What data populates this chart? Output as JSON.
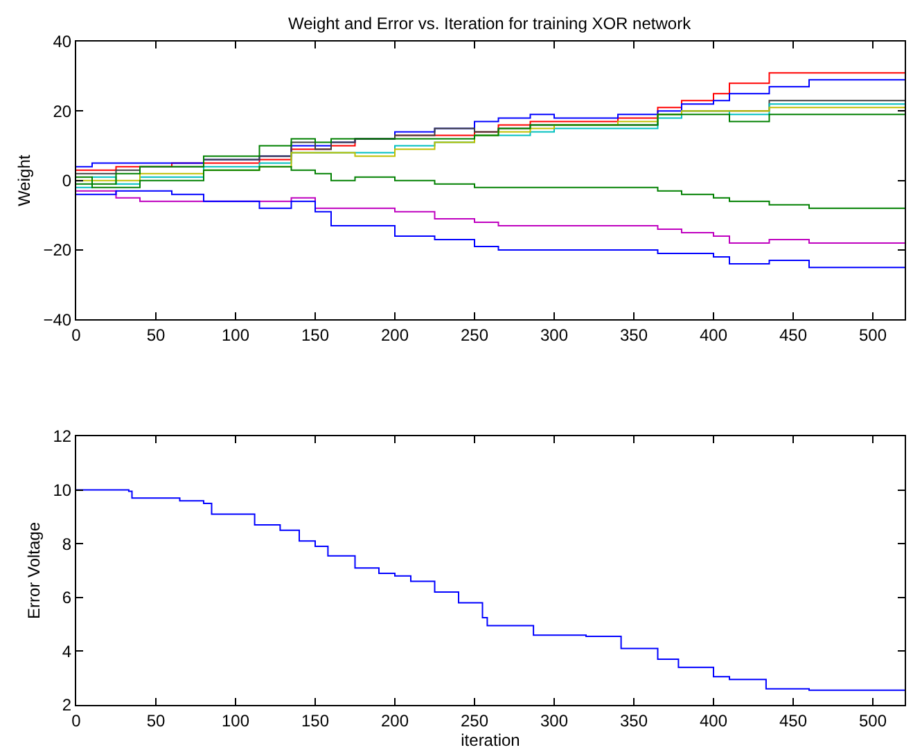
{
  "chart_data": [
    {
      "type": "step",
      "title": "Weight and Error vs. Iteration for training XOR network",
      "ylabel": "Weight",
      "x": [
        0,
        10,
        25,
        40,
        60,
        80,
        100,
        115,
        135,
        150,
        160,
        175,
        200,
        225,
        250,
        265,
        285,
        300,
        340,
        365,
        380,
        400,
        410,
        435,
        460,
        520
      ],
      "series": [
        {
          "color": "#ff0000",
          "values": [
            3,
            3,
            4,
            4,
            5,
            5,
            5,
            6,
            9,
            9,
            10,
            12,
            13,
            13,
            14,
            16,
            17,
            17,
            18,
            21,
            23,
            25,
            28,
            31,
            31,
            31
          ]
        },
        {
          "color": "#0000ff",
          "values": [
            4,
            5,
            5,
            5,
            5,
            6,
            6,
            7,
            10,
            10,
            11,
            12,
            14,
            15,
            17,
            18,
            19,
            18,
            19,
            20,
            22,
            23,
            25,
            27,
            29,
            29
          ]
        },
        {
          "color": "#404040",
          "values": [
            2,
            2,
            3,
            4,
            4,
            6,
            6,
            7,
            11,
            9,
            11,
            12,
            13,
            15,
            14,
            15,
            16,
            16,
            16,
            19,
            20,
            20,
            20,
            23,
            23,
            23
          ]
        },
        {
          "color": "#00bfbf",
          "values": [
            -2,
            1,
            -1,
            1,
            1,
            4,
            4,
            5,
            8,
            8,
            8,
            8,
            10,
            11,
            13,
            13,
            14,
            15,
            15,
            18,
            20,
            20,
            19,
            22,
            22,
            22
          ]
        },
        {
          "color": "#bfbf00",
          "values": [
            0,
            0,
            0,
            2,
            2,
            3,
            3,
            4,
            8,
            8,
            8,
            7,
            9,
            11,
            13,
            14,
            15,
            16,
            17,
            19,
            20,
            20,
            20,
            21,
            21,
            21
          ]
        },
        {
          "color": "#008000",
          "values": [
            1,
            -1,
            2,
            4,
            4,
            7,
            7,
            10,
            12,
            11,
            12,
            12,
            12,
            12,
            13,
            15,
            16,
            16,
            16,
            19,
            19,
            19,
            17,
            19,
            19,
            19
          ]
        },
        {
          "color": "#008000",
          "values": [
            -1,
            -2,
            -2,
            0,
            0,
            3,
            3,
            4,
            3,
            2,
            0,
            1,
            0,
            -1,
            -2,
            -2,
            -2,
            -2,
            -2,
            -3,
            -4,
            -5,
            -6,
            -7,
            -8,
            -8
          ]
        },
        {
          "color": "#bf00bf",
          "values": [
            -3,
            -3,
            -5,
            -6,
            -6,
            -6,
            -6,
            -6,
            -5,
            -8,
            -8,
            -8,
            -9,
            -11,
            -12,
            -13,
            -13,
            -13,
            -13,
            -14,
            -15,
            -16,
            -18,
            -17,
            -18,
            -18
          ]
        },
        {
          "color": "#0000ff",
          "values": [
            -4,
            -4,
            -3,
            -3,
            -4,
            -6,
            -6,
            -8,
            -6,
            -9,
            -13,
            -13,
            -16,
            -17,
            -19,
            -20,
            -20,
            -20,
            -20,
            -21,
            -21,
            -22,
            -24,
            -23,
            -25,
            -25
          ]
        }
      ],
      "xlim": [
        0,
        520
      ],
      "xticks": [
        0,
        50,
        100,
        150,
        200,
        250,
        300,
        350,
        400,
        450,
        500
      ],
      "ylim": [
        -40,
        40
      ],
      "yticks": [
        -40,
        -20,
        0,
        20,
        40
      ],
      "marker": "none",
      "line_style": "solid"
    },
    {
      "type": "step",
      "xlabel": "iteration",
      "ylabel": "Error Voltage",
      "x": [
        0,
        33,
        35,
        65,
        80,
        85,
        112,
        128,
        140,
        150,
        158,
        175,
        190,
        200,
        210,
        225,
        240,
        255,
        258,
        287,
        320,
        342,
        365,
        378,
        400,
        410,
        433,
        460,
        520
      ],
      "series": [
        {
          "color": "#0000ff",
          "values": [
            10,
            9.95,
            9.7,
            9.6,
            9.5,
            9.1,
            8.7,
            8.5,
            8.1,
            7.9,
            7.55,
            7.1,
            6.9,
            6.8,
            6.6,
            6.2,
            5.8,
            5.25,
            4.95,
            4.6,
            4.55,
            4.1,
            3.7,
            3.4,
            3.05,
            2.95,
            2.6,
            2.55,
            2.55
          ]
        }
      ],
      "xlim": [
        0,
        520
      ],
      "xticks": [
        0,
        50,
        100,
        150,
        200,
        250,
        300,
        350,
        400,
        450,
        500
      ],
      "ylim": [
        2,
        12
      ],
      "yticks": [
        2,
        4,
        6,
        8,
        10,
        12
      ],
      "marker": "none",
      "line_style": "solid"
    }
  ]
}
